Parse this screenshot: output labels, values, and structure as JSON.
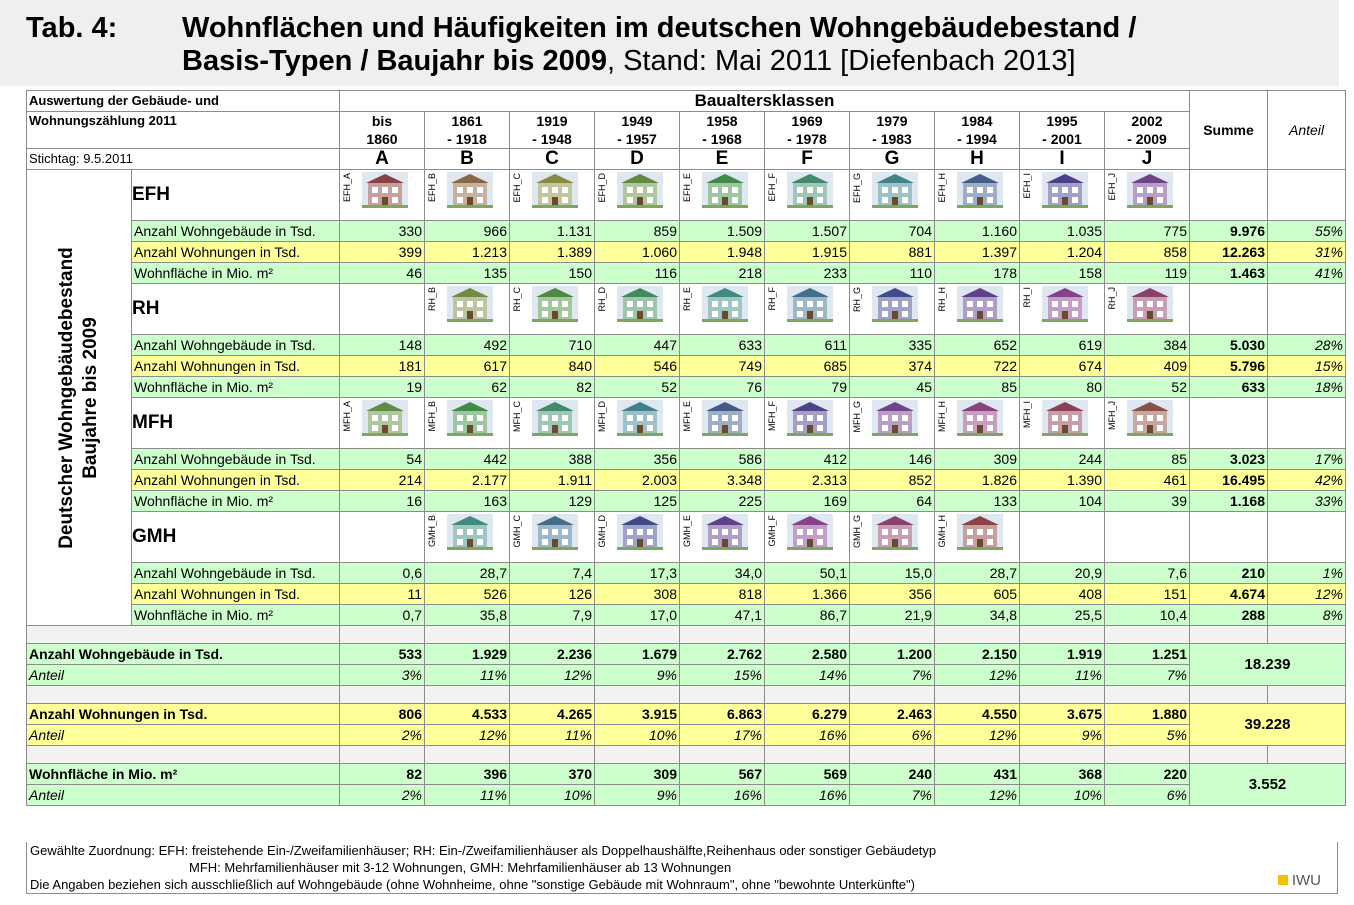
{
  "title": {
    "tab": "Tab. 4:",
    "line1": "Wohnflächen und Häufigkeiten im deutschen Wohngebäudebestand /",
    "line2_bold": "Basis-Typen / Baujahr bis 2009",
    "line2_rest": ", Stand: Mai 2011 [Diefenbach 2013]"
  },
  "header": {
    "source_line1": "Auswertung der Gebäude- und",
    "source_line2": "Wohnungszählung 2011",
    "stichtag": "Stichtag: 9.5.2011",
    "group_title": "Baualtersklassen",
    "sum_label": "Summe",
    "share_label": "Anteil",
    "classes": [
      {
        "l1": "bis",
        "l2": "1860",
        "letter": "A"
      },
      {
        "l1": "1861",
        "l2": "- 1918",
        "letter": "B"
      },
      {
        "l1": "1919",
        "l2": "- 1948",
        "letter": "C"
      },
      {
        "l1": "1949",
        "l2": "- 1957",
        "letter": "D"
      },
      {
        "l1": "1958",
        "l2": "- 1968",
        "letter": "E"
      },
      {
        "l1": "1969",
        "l2": "- 1978",
        "letter": "F"
      },
      {
        "l1": "1979",
        "l2": "- 1983",
        "letter": "G"
      },
      {
        "l1": "1984",
        "l2": "- 1994",
        "letter": "H"
      },
      {
        "l1": "1995",
        "l2": "- 2001",
        "letter": "I"
      },
      {
        "l1": "2002",
        "l2": "- 2009",
        "letter": "J"
      }
    ]
  },
  "side_label": {
    "line1": "Deutscher Wohngebäudebestand",
    "line2": "Baujahre bis 2009"
  },
  "sections": [
    {
      "type": "EFH",
      "photos": [
        "EFH_A",
        "EFH_B",
        "EFH_C",
        "EFH_D",
        "EFH_E",
        "EFH_F",
        "EFH_G",
        "EFH_H",
        "EFH_I",
        "EFH_J"
      ],
      "rows": [
        {
          "label": "Anzahl Wohngebäude in Tsd.",
          "color": "g",
          "values": [
            "330",
            "966",
            "1.131",
            "859",
            "1.509",
            "1.507",
            "704",
            "1.160",
            "1.035",
            "775"
          ],
          "sum": "9.976",
          "share": "55%"
        },
        {
          "label": "Anzahl Wohnungen in Tsd.",
          "color": "y",
          "values": [
            "399",
            "1.213",
            "1.389",
            "1.060",
            "1.948",
            "1.915",
            "881",
            "1.397",
            "1.204",
            "858"
          ],
          "sum": "12.263",
          "share": "31%"
        },
        {
          "label": "Wohnfläche in Mio. m²",
          "color": "g",
          "values": [
            "46",
            "135",
            "150",
            "116",
            "218",
            "233",
            "110",
            "178",
            "158",
            "119"
          ],
          "sum": "1.463",
          "share": "41%"
        }
      ]
    },
    {
      "type": "RH",
      "photos": [
        "",
        "RH_B",
        "RH_C",
        "RH_D",
        "RH_E",
        "RH_F",
        "RH_G",
        "RH_H",
        "RH_I",
        "RH_J"
      ],
      "rows": [
        {
          "label": "Anzahl Wohngebäude in Tsd.",
          "color": "g",
          "values": [
            "148",
            "492",
            "710",
            "447",
            "633",
            "611",
            "335",
            "652",
            "619",
            "384"
          ],
          "sum": "5.030",
          "share": "28%"
        },
        {
          "label": "Anzahl Wohnungen in Tsd.",
          "color": "y",
          "values": [
            "181",
            "617",
            "840",
            "546",
            "749",
            "685",
            "374",
            "722",
            "674",
            "409"
          ],
          "sum": "5.796",
          "share": "15%"
        },
        {
          "label": "Wohnfläche in Mio. m²",
          "color": "g",
          "values": [
            "19",
            "62",
            "82",
            "52",
            "76",
            "79",
            "45",
            "85",
            "80",
            "52"
          ],
          "sum": "633",
          "share": "18%"
        }
      ]
    },
    {
      "type": "MFH",
      "photos": [
        "MFH_A",
        "MFH_B",
        "MFH_C",
        "MFH_D",
        "MFH_E",
        "MFH_F",
        "MFH_G",
        "MFH_H",
        "MFH_I",
        "MFH_J"
      ],
      "rows": [
        {
          "label": "Anzahl Wohngebäude in Tsd.",
          "color": "g",
          "values": [
            "54",
            "442",
            "388",
            "356",
            "586",
            "412",
            "146",
            "309",
            "244",
            "85"
          ],
          "sum": "3.023",
          "share": "17%"
        },
        {
          "label": "Anzahl Wohnungen in Tsd.",
          "color": "y",
          "values": [
            "214",
            "2.177",
            "1.911",
            "2.003",
            "3.348",
            "2.313",
            "852",
            "1.826",
            "1.390",
            "461"
          ],
          "sum": "16.495",
          "share": "42%"
        },
        {
          "label": "Wohnfläche in Mio. m²",
          "color": "g",
          "values": [
            "16",
            "163",
            "129",
            "125",
            "225",
            "169",
            "64",
            "133",
            "104",
            "39"
          ],
          "sum": "1.168",
          "share": "33%"
        }
      ]
    },
    {
      "type": "GMH",
      "photos": [
        "",
        "GMH_B",
        "GMH_C",
        "GMH_D",
        "GMH_E",
        "GMH_F",
        "GMH_G",
        "GMH_H",
        "",
        ""
      ],
      "rows": [
        {
          "label": "Anzahl Wohngebäude in Tsd.",
          "color": "g",
          "values": [
            "0,6",
            "28,7",
            "7,4",
            "17,3",
            "34,0",
            "50,1",
            "15,0",
            "28,7",
            "20,9",
            "7,6"
          ],
          "sum": "210",
          "share": "1%"
        },
        {
          "label": "Anzahl Wohnungen in Tsd.",
          "color": "y",
          "values": [
            "11",
            "526",
            "126",
            "308",
            "818",
            "1.366",
            "356",
            "605",
            "408",
            "151"
          ],
          "sum": "4.674",
          "share": "12%"
        },
        {
          "label": "Wohnfläche in Mio. m²",
          "color": "g",
          "values": [
            "0,7",
            "35,8",
            "7,9",
            "17,0",
            "47,1",
            "86,7",
            "21,9",
            "34,8",
            "25,5",
            "10,4"
          ],
          "sum": "288",
          "share": "8%"
        }
      ]
    }
  ],
  "totals": [
    {
      "label": "Anzahl Wohngebäude in Tsd.",
      "color": "g",
      "values": [
        "533",
        "1.929",
        "2.236",
        "1.679",
        "2.762",
        "2.580",
        "1.200",
        "2.150",
        "1.919",
        "1.251"
      ],
      "share_label": "Anteil",
      "shares": [
        "3%",
        "11%",
        "12%",
        "9%",
        "15%",
        "14%",
        "7%",
        "12%",
        "11%",
        "7%"
      ],
      "total": "18.239"
    },
    {
      "label": "Anzahl Wohnungen in Tsd.",
      "color": "y",
      "values": [
        "806",
        "4.533",
        "4.265",
        "3.915",
        "6.863",
        "6.279",
        "2.463",
        "4.550",
        "3.675",
        "1.880"
      ],
      "share_label": "Anteil",
      "shares": [
        "2%",
        "12%",
        "11%",
        "10%",
        "17%",
        "16%",
        "6%",
        "12%",
        "9%",
        "5%"
      ],
      "total": "39.228"
    },
    {
      "label": "Wohnfläche in Mio. m²",
      "color": "g",
      "values": [
        "82",
        "396",
        "370",
        "309",
        "567",
        "569",
        "240",
        "431",
        "368",
        "220"
      ],
      "share_label": "Anteil",
      "shares": [
        "2%",
        "11%",
        "10%",
        "9%",
        "16%",
        "16%",
        "7%",
        "12%",
        "10%",
        "6%"
      ],
      "total": "3.552"
    }
  ],
  "footer": {
    "line1": "Gewählte Zuordnung: EFH: freistehende Ein-/Zweifamilienhäuser; RH: Ein-/Zweifamilienhäuser als Doppelhaushälfte,Reihenhaus oder sonstiger Gebäudetyp",
    "line2": "MFH: Mehrfamilienhäuser mit 3-12 Wohnungen, GMH: Mehrfamilienhäuser ab 13 Wohnungen",
    "line3": "Die Angaben beziehen sich ausschließlich auf Wohngebäude (ohne Wohnheime, ohne \"sonstige Gebäude mit Wohnraum\", ohne \"bewohnte Unterkünfte\")",
    "logo": "IWU"
  },
  "colors": {
    "green": "#ccffcc",
    "yellow": "#ffff99",
    "border": "#8c8c8c"
  }
}
